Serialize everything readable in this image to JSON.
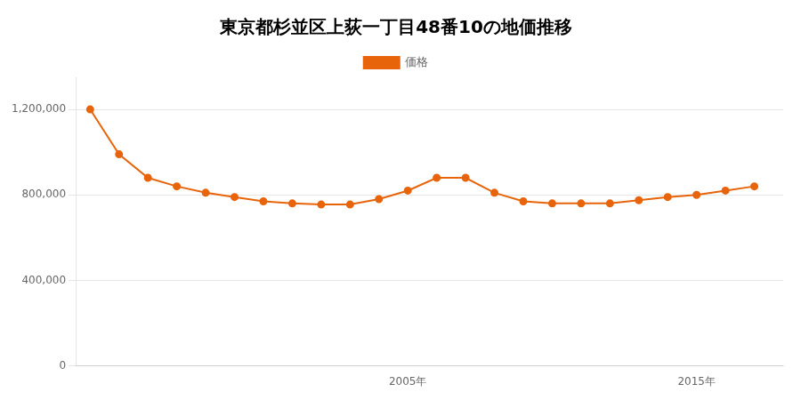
{
  "chart_data": {
    "type": "line",
    "title": "東京都杉並区上荻一丁目48番10の地価推移",
    "x": [
      1994,
      1995,
      1996,
      1997,
      1998,
      1999,
      2000,
      2001,
      2002,
      2003,
      2004,
      2005,
      2006,
      2007,
      2008,
      2009,
      2010,
      2011,
      2012,
      2013,
      2014,
      2015,
      2016,
      2017
    ],
    "series": [
      {
        "name": "価格",
        "color": "#e8640a",
        "marker": "circle",
        "values": [
          1200000,
          990000,
          880000,
          840000,
          810000,
          790000,
          770000,
          760000,
          755000,
          755000,
          780000,
          820000,
          880000,
          880000,
          810000,
          770000,
          760000,
          760000,
          760000,
          775000,
          790000,
          800000,
          820000,
          840000
        ]
      }
    ],
    "xlim": [
      1993.5,
      2018.0
    ],
    "ylim": [
      0,
      1350000
    ],
    "xticks": [
      {
        "value": 2005,
        "label": "2005年"
      },
      {
        "value": 2015,
        "label": "2015年"
      }
    ],
    "yticks": [
      0,
      {
        "value": 400000,
        "label": "400,000"
      },
      {
        "value": 800000,
        "label": "800,000"
      },
      {
        "value": 1200000,
        "label": "1,200,000"
      }
    ],
    "grid": "y",
    "legend": "top"
  }
}
